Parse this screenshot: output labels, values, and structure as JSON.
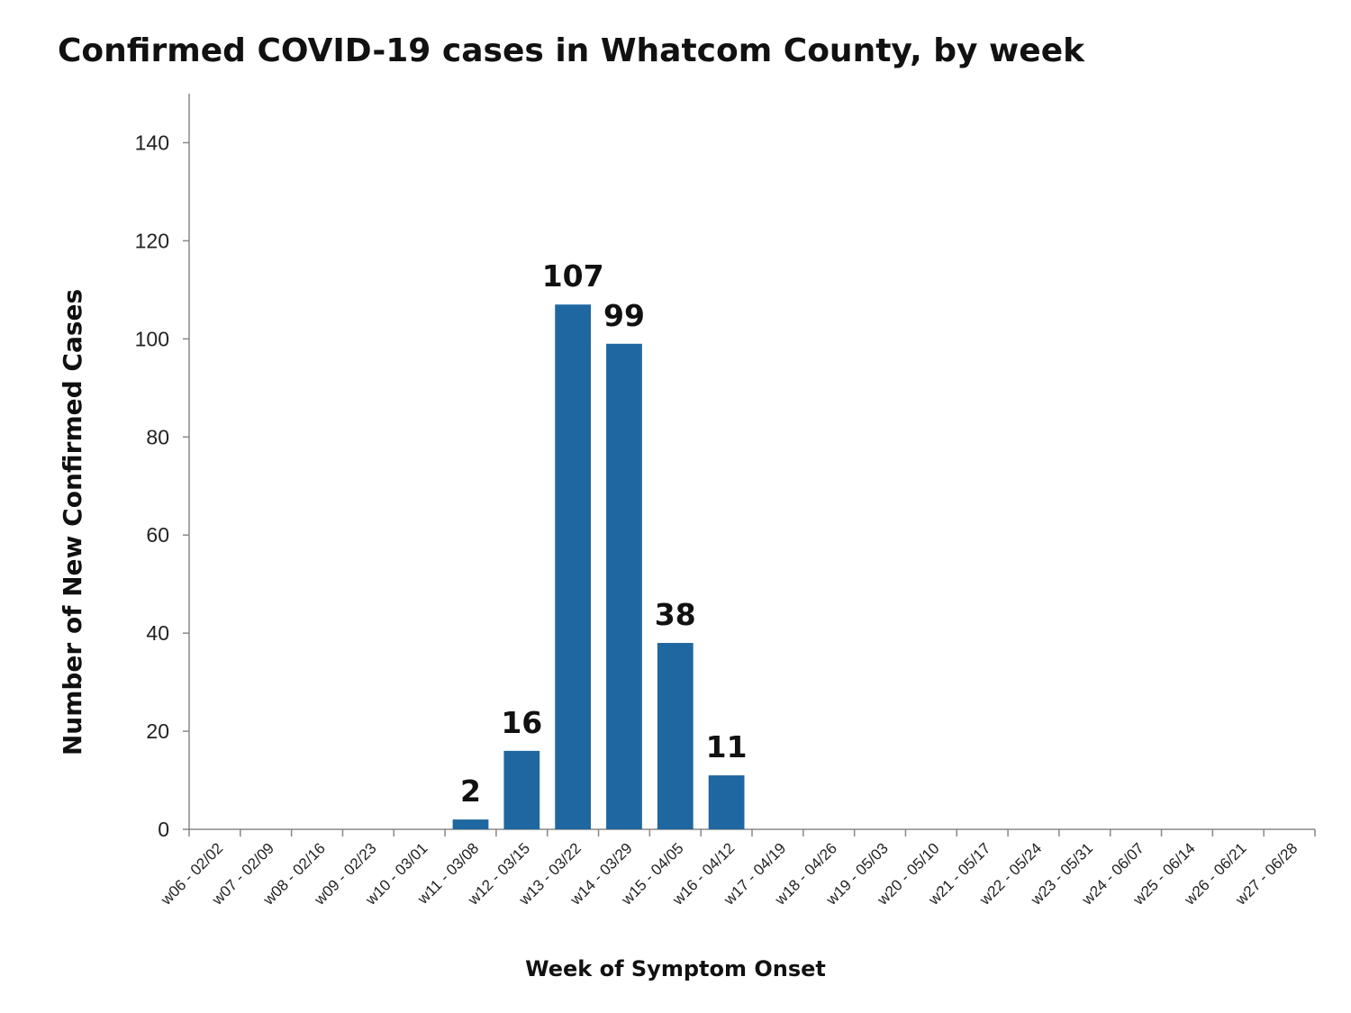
{
  "chart_data": {
    "type": "bar",
    "title": "Confirmed COVID-19 cases in Whatcom County, by week",
    "xlabel": "Week of Symptom Onset",
    "ylabel": "Number of New Confirmed Cases",
    "ylim": [
      0,
      150
    ],
    "yticks": [
      0,
      20,
      40,
      60,
      80,
      100,
      120,
      140
    ],
    "grid": false,
    "bar_color": "#1f67a0",
    "categories": [
      "w06 - 02/02",
      "w07 - 02/09",
      "w08 - 02/16",
      "w09 - 02/23",
      "w10 - 03/01",
      "w11 - 03/08",
      "w12 - 03/15",
      "w13 - 03/22",
      "w14 - 03/29",
      "w15 - 04/05",
      "w16 - 04/12",
      "w17 - 04/19",
      "w18 - 04/26",
      "w19 - 05/03",
      "w20 - 05/10",
      "w21 - 05/17",
      "w22 - 05/24",
      "w23 - 05/31",
      "w24 - 06/07",
      "w25 - 06/14",
      "w26 - 06/21",
      "w27 - 06/28"
    ],
    "values": [
      0,
      0,
      0,
      0,
      0,
      2,
      16,
      107,
      99,
      38,
      11,
      0,
      0,
      0,
      0,
      0,
      0,
      0,
      0,
      0,
      0,
      0
    ],
    "data_labels": [
      "",
      "",
      "",
      "",
      "",
      "2",
      "16",
      "107",
      "99",
      "38",
      "11",
      "",
      "",
      "",
      "",
      "",
      "",
      "",
      "",
      "",
      "",
      ""
    ]
  }
}
